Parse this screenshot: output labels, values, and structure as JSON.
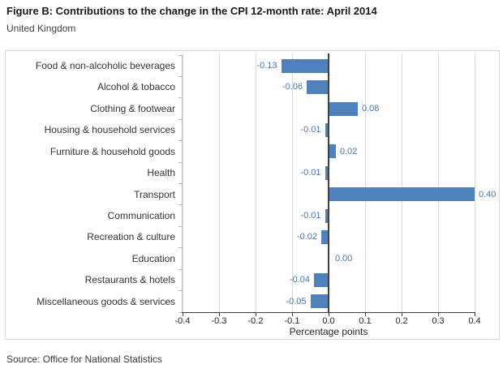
{
  "header": {
    "title": "Figure B: Contributions to the change in the CPI 12-month rate: April 2014",
    "subtitle": "United Kingdom"
  },
  "chart_data": {
    "type": "bar",
    "orientation": "horizontal",
    "title": "Figure B: Contributions to the change in the CPI 12-month rate: April 2014",
    "subtitle": "United Kingdom",
    "categories": [
      "Food & non-alcoholic beverages",
      "Alcohol & tobacco",
      "Clothing & footwear",
      "Housing & household services",
      "Furniture & household goods",
      "Health",
      "Transport",
      "Communication",
      "Recreation & culture",
      "Education",
      "Restaurants & hotels",
      "Miscellaneous goods & services"
    ],
    "values": [
      -0.13,
      -0.06,
      0.08,
      -0.01,
      0.02,
      -0.01,
      0.4,
      -0.01,
      -0.02,
      0.0,
      -0.04,
      -0.05
    ],
    "value_labels": [
      "-0.13",
      "-0.06",
      "0.08",
      "-0.01",
      "0.02",
      "-0.01",
      "0.40",
      "-0.01",
      "-0.02",
      "0.00",
      "-0.04",
      "-0.05"
    ],
    "xlabel": "Percentage points",
    "ylabel": "",
    "xlim": [
      -0.4,
      0.4
    ],
    "x_ticks": [
      "-0.4",
      "-0.3",
      "-0.2",
      "-0.1",
      "0.0",
      "0.1",
      "0.2",
      "0.3",
      "0.4"
    ],
    "grid": true,
    "legend": false,
    "colors": {
      "bar": "#4F81BD",
      "value_label": "#4B74B4",
      "gridline": "#D9D9D9",
      "category_axis": "#BFBFBF",
      "value_axis": "#404040",
      "frame_border": "#D9D9D9"
    }
  },
  "footer": {
    "source": "Source: Office for National Statistics"
  }
}
